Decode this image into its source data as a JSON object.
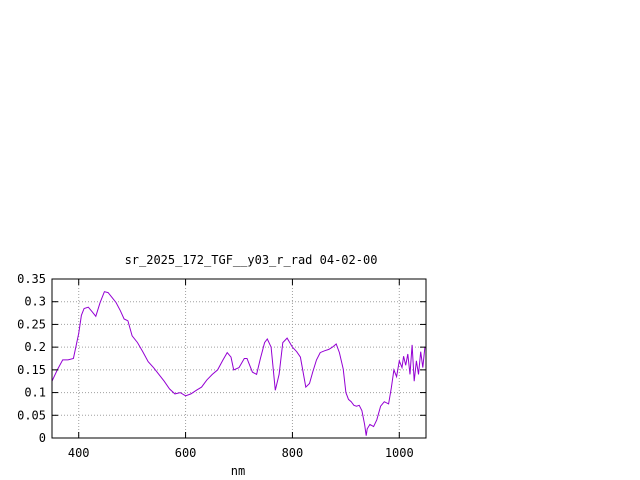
{
  "chart_data": {
    "type": "line",
    "title": "sr_2025_172_TGF__y03_r_rad 04-02-00",
    "xlabel": "nm",
    "ylabel": "",
    "xlim": [
      350,
      1050
    ],
    "ylim": [
      0,
      0.35
    ],
    "x_ticks": [
      400,
      600,
      800,
      1000
    ],
    "y_ticks": [
      0,
      0.05,
      0.1,
      0.15,
      0.2,
      0.25,
      0.3,
      0.35
    ],
    "x_tick_labels": [
      "400",
      "600",
      "800",
      "1000"
    ],
    "y_tick_labels": [
      "0",
      "0.05",
      "0.1",
      "0.15",
      "0.2",
      "0.25",
      "0.3",
      "0.35"
    ],
    "grid": true,
    "legend": "none",
    "series": [
      {
        "color": "#9400d3",
        "x": [
          350,
          360,
          370,
          380,
          390,
          400,
          405,
          410,
          418,
          425,
          432,
          440,
          448,
          455,
          462,
          470,
          478,
          485,
          492,
          500,
          510,
          520,
          530,
          540,
          550,
          560,
          570,
          580,
          590,
          600,
          610,
          620,
          630,
          640,
          650,
          660,
          670,
          678,
          685,
          690,
          700,
          710,
          715,
          725,
          733,
          740,
          748,
          753,
          760,
          768,
          775,
          782,
          790,
          800,
          808,
          815,
          825,
          832,
          838,
          845,
          852,
          860,
          868,
          875,
          882,
          888,
          895,
          900,
          905,
          910,
          915,
          920,
          925,
          930,
          935,
          938,
          940,
          945,
          952,
          958,
          965,
          972,
          980,
          985,
          990,
          995,
          1000,
          1005,
          1008,
          1012,
          1016,
          1020,
          1024,
          1028,
          1032,
          1036,
          1040,
          1044,
          1048
        ],
        "y": [
          0.125,
          0.15,
          0.172,
          0.172,
          0.175,
          0.23,
          0.27,
          0.285,
          0.288,
          0.278,
          0.268,
          0.298,
          0.322,
          0.32,
          0.31,
          0.298,
          0.28,
          0.262,
          0.258,
          0.225,
          0.21,
          0.19,
          0.168,
          0.155,
          0.14,
          0.125,
          0.108,
          0.097,
          0.1,
          0.093,
          0.097,
          0.105,
          0.112,
          0.128,
          0.14,
          0.15,
          0.172,
          0.188,
          0.178,
          0.15,
          0.155,
          0.175,
          0.175,
          0.145,
          0.14,
          0.175,
          0.21,
          0.218,
          0.2,
          0.105,
          0.14,
          0.21,
          0.22,
          0.2,
          0.19,
          0.178,
          0.112,
          0.12,
          0.145,
          0.172,
          0.188,
          0.192,
          0.195,
          0.2,
          0.207,
          0.188,
          0.152,
          0.1,
          0.085,
          0.08,
          0.072,
          0.07,
          0.072,
          0.06,
          0.03,
          0.005,
          0.02,
          0.03,
          0.025,
          0.04,
          0.07,
          0.08,
          0.075,
          0.11,
          0.15,
          0.135,
          0.17,
          0.155,
          0.18,
          0.16,
          0.185,
          0.14,
          0.205,
          0.125,
          0.17,
          0.14,
          0.19,
          0.155,
          0.2
        ]
      }
    ]
  }
}
